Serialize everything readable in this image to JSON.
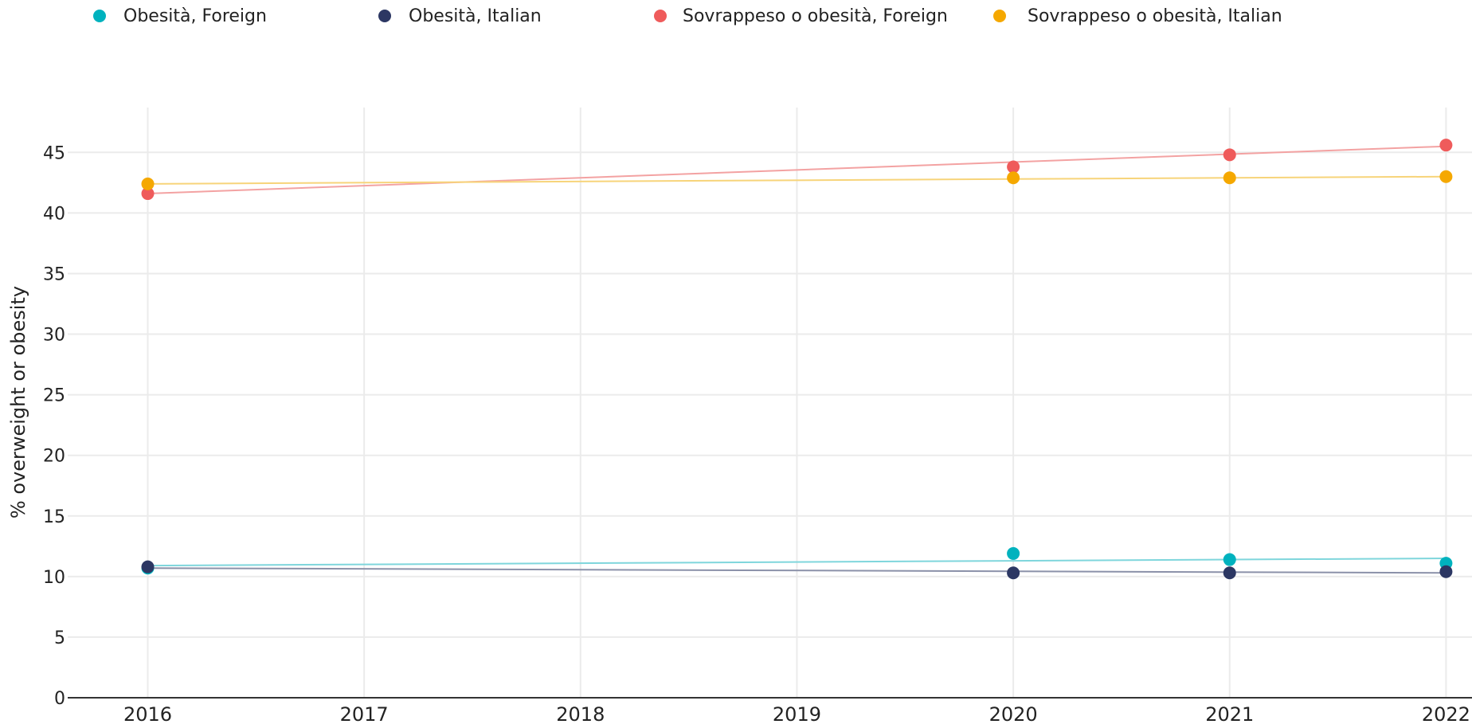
{
  "chart_data": {
    "type": "line",
    "title": "",
    "xlabel": "",
    "ylabel": "% overweight or obesity",
    "x": [
      2016,
      2020,
      2021,
      2022
    ],
    "x_ticks": [
      "2016",
      "2017",
      "2018",
      "2019",
      "2020",
      "2021",
      "2022"
    ],
    "y_ticks": [
      "0",
      "5",
      "10",
      "15",
      "20",
      "25",
      "30",
      "35",
      "40",
      "45"
    ],
    "xlim": [
      2015.63,
      2022.12
    ],
    "ylim": [
      0,
      48.7
    ],
    "grid": true,
    "legend_position": "top",
    "series": [
      {
        "name": "Obesità, Foreign",
        "color": "#00b2be",
        "line_color": "#7fd6dc",
        "values": [
          10.7,
          11.9,
          11.4,
          11.1
        ],
        "trend": [
          10.9,
          11.5
        ]
      },
      {
        "name": "Obesità, Italian",
        "color": "#2c3763",
        "line_color": "#8b91a9",
        "values": [
          10.8,
          10.3,
          10.3,
          10.4
        ],
        "trend": [
          10.7,
          10.3
        ]
      },
      {
        "name": "Sovrappeso o obesità, Foreign",
        "color": "#ef5b5b",
        "line_color": "#f3a2a2",
        "values": [
          41.6,
          43.8,
          44.8,
          45.6
        ],
        "trend": [
          41.6,
          45.5
        ]
      },
      {
        "name": "Sovrappeso o obesità, Italian",
        "color": "#f5a800",
        "line_color": "#f7d47a",
        "values": [
          42.4,
          42.9,
          42.9,
          43.0
        ],
        "trend": [
          42.4,
          43.0
        ]
      }
    ]
  }
}
